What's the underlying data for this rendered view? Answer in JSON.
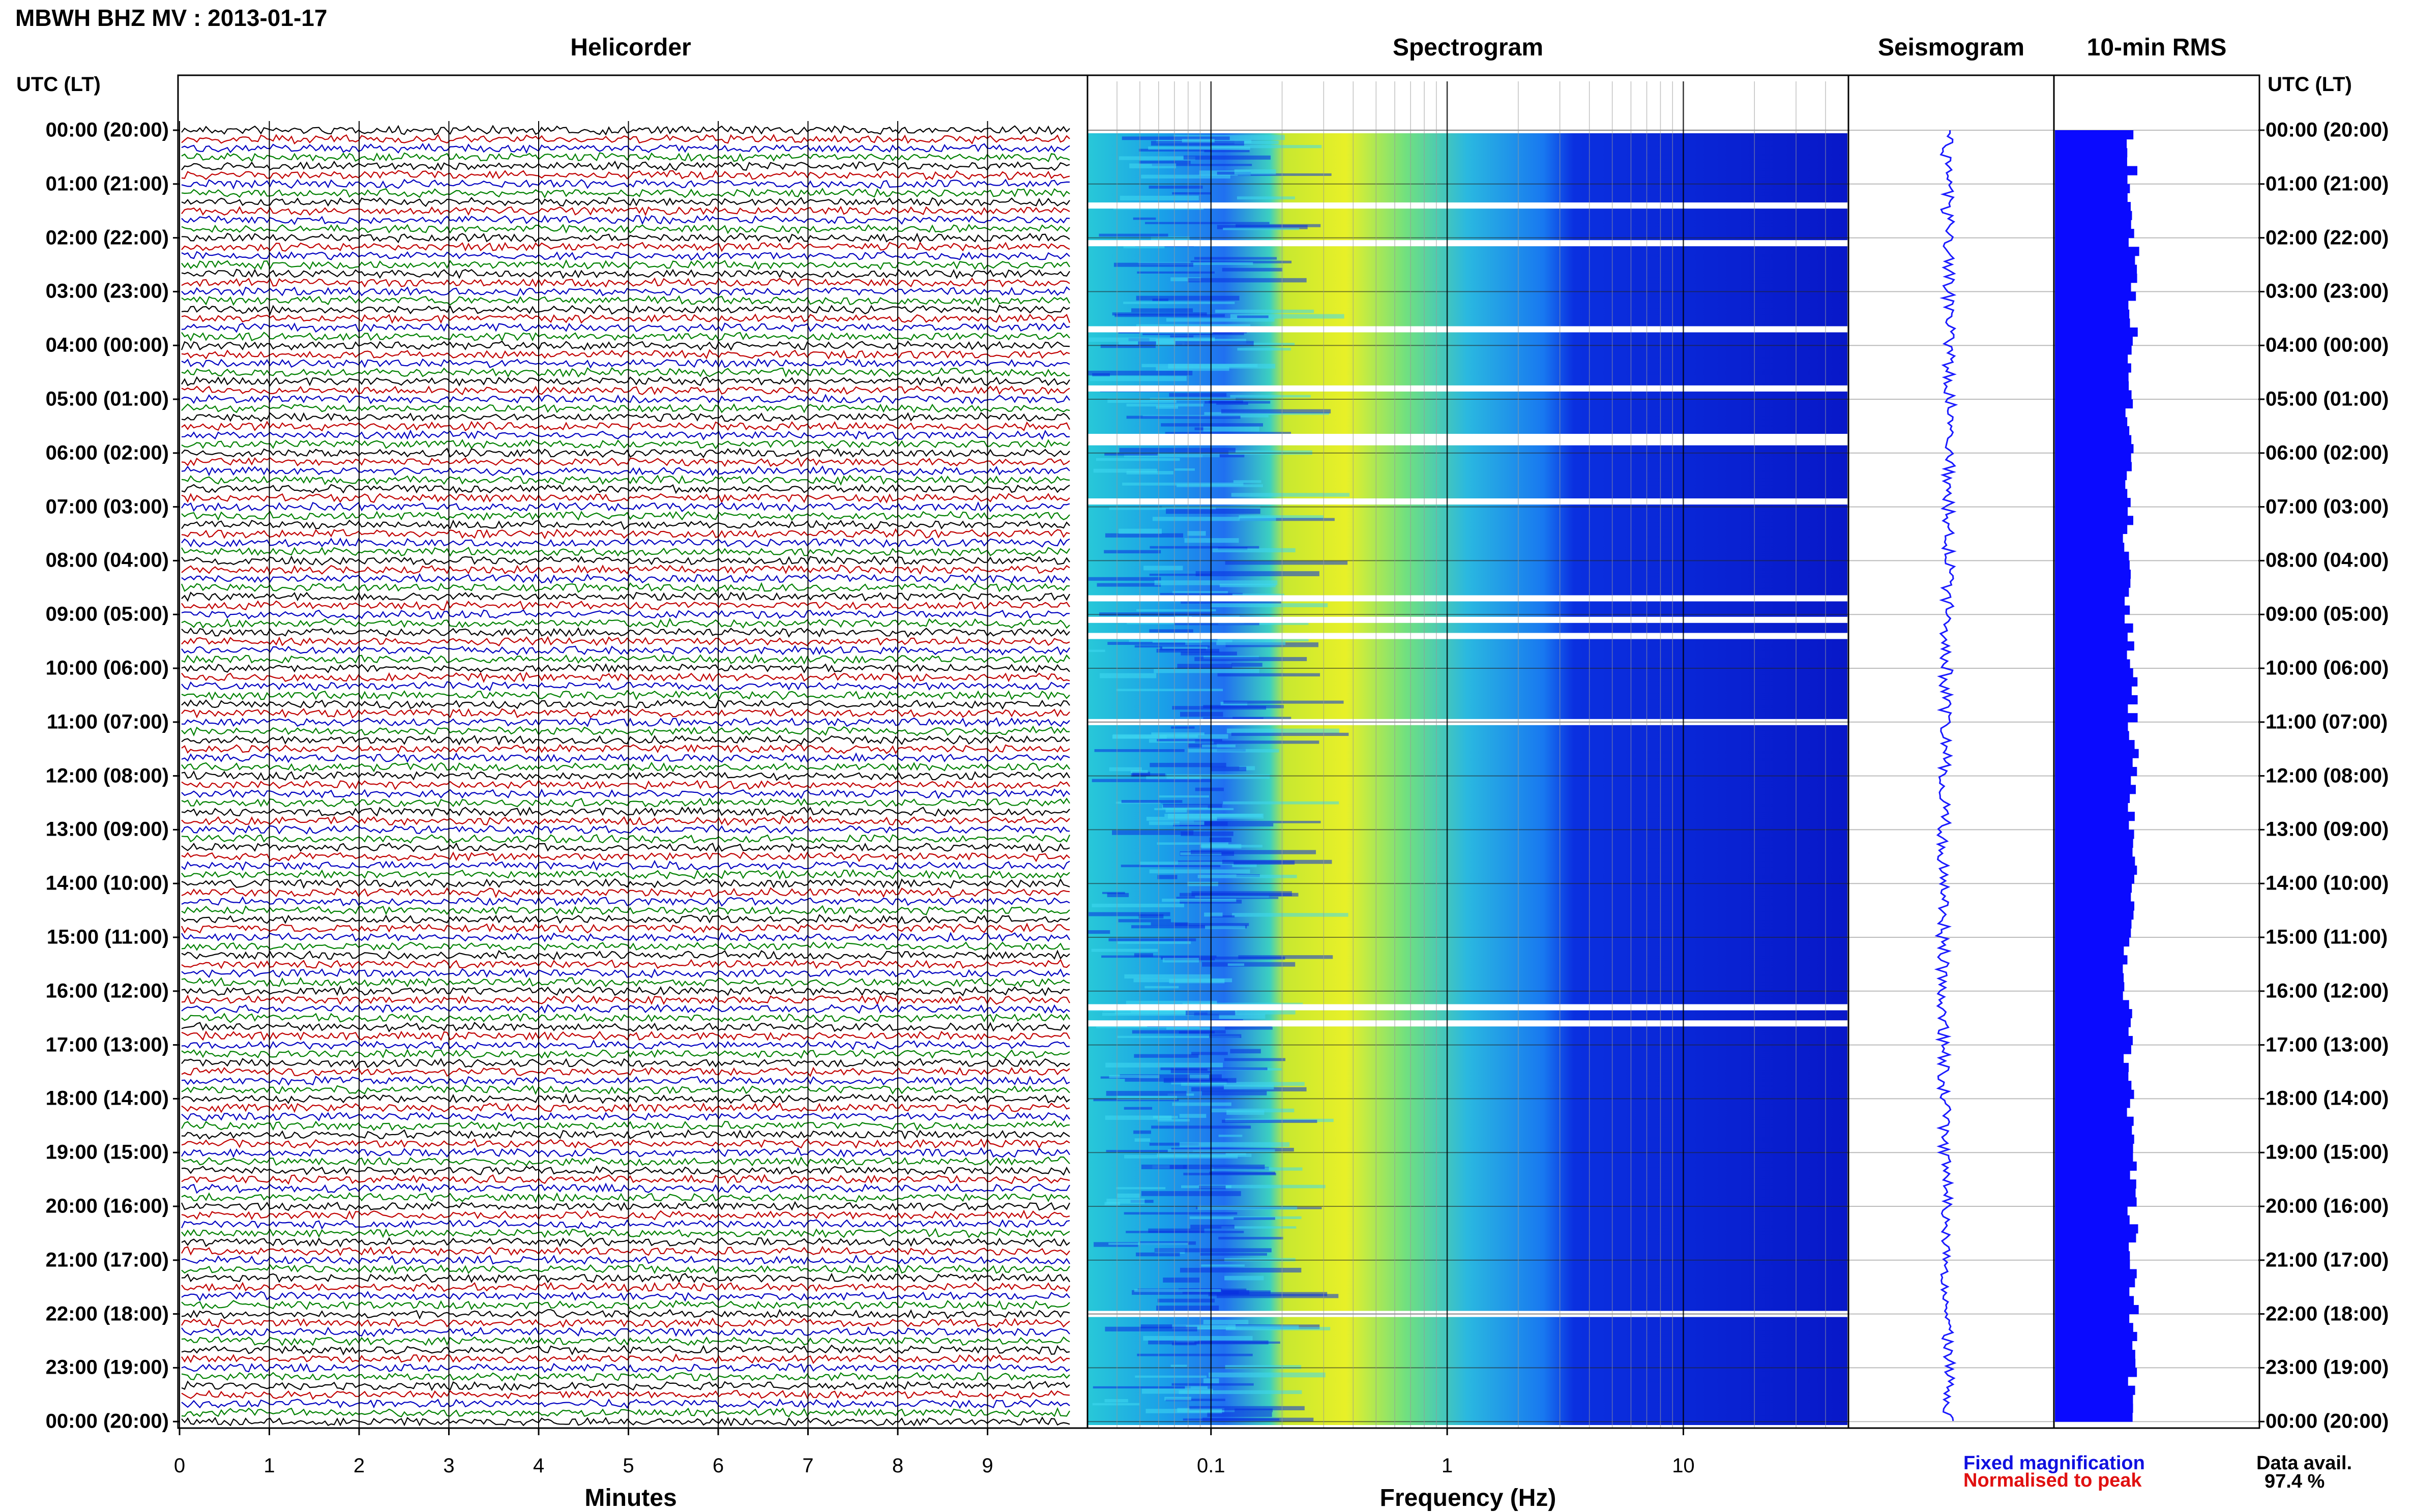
{
  "title": "MBWH BHZ MV : 2013-01-17",
  "panels": {
    "helicorder": "Helicorder",
    "spectrogram": "Spectrogram",
    "seismogram": "Seismogram",
    "rms": "10-min RMS"
  },
  "utc_header_left": "UTC (LT)",
  "utc_header_right": "UTC (LT)",
  "time_labels": [
    "00:00 (20:00)",
    "01:00 (21:00)",
    "02:00 (22:00)",
    "03:00 (23:00)",
    "04:00 (00:00)",
    "05:00 (01:00)",
    "06:00 (02:00)",
    "07:00 (03:00)",
    "08:00 (04:00)",
    "09:00 (05:00)",
    "10:00 (06:00)",
    "11:00 (07:00)",
    "12:00 (08:00)",
    "13:00 (09:00)",
    "14:00 (10:00)",
    "15:00 (11:00)",
    "16:00 (12:00)",
    "17:00 (13:00)",
    "18:00 (14:00)",
    "19:00 (15:00)",
    "20:00 (16:00)",
    "21:00 (17:00)",
    "22:00 (18:00)",
    "23:00 (19:00)",
    "00:00 (20:00)"
  ],
  "colors": {
    "trace_cycle": [
      "#000000",
      "#c00000",
      "#0000c0",
      "#008000"
    ],
    "seismogram": "#1a1aff",
    "rms": "#0a0aff",
    "fixed_magnification": "#1010e0",
    "normalised": "#e01010"
  },
  "chart_data": [
    {
      "type": "line",
      "title": "Helicorder",
      "xlabel": "Minutes",
      "xticks": [
        "0",
        "1",
        "2",
        "3",
        "4",
        "5",
        "6",
        "7",
        "8",
        "9"
      ],
      "xlim": [
        0,
        10
      ],
      "y_axis": "UTC hour, 6 traces per hour (10 min each)",
      "note": "One trace per 10 minutes, colours cycle black, red, blue, green"
    },
    {
      "type": "heatmap",
      "title": "Spectrogram",
      "xlabel": "Frequency (Hz)",
      "xscale": "log",
      "xticks": [
        "0.1",
        "1",
        "10"
      ],
      "xlim": [
        0.03,
        50
      ],
      "data_gaps_utc_hours": [
        1.4,
        2.1,
        3.7,
        4.8,
        5.7,
        5.8,
        6.9,
        8.7,
        9.1,
        9.4,
        11.0,
        16.3,
        16.6,
        22.0
      ]
    },
    {
      "type": "line",
      "title": "Seismogram",
      "gap_utc_hours": [
        5.8,
        5.85
      ]
    },
    {
      "type": "bar",
      "title": "10-min RMS",
      "orientation": "horizontal"
    }
  ],
  "legend": {
    "fixed_magnification": "Fixed magnification",
    "normalised": "Normalised to peak"
  },
  "data_availability": {
    "label": "Data avail.",
    "value": "97.4 %"
  }
}
